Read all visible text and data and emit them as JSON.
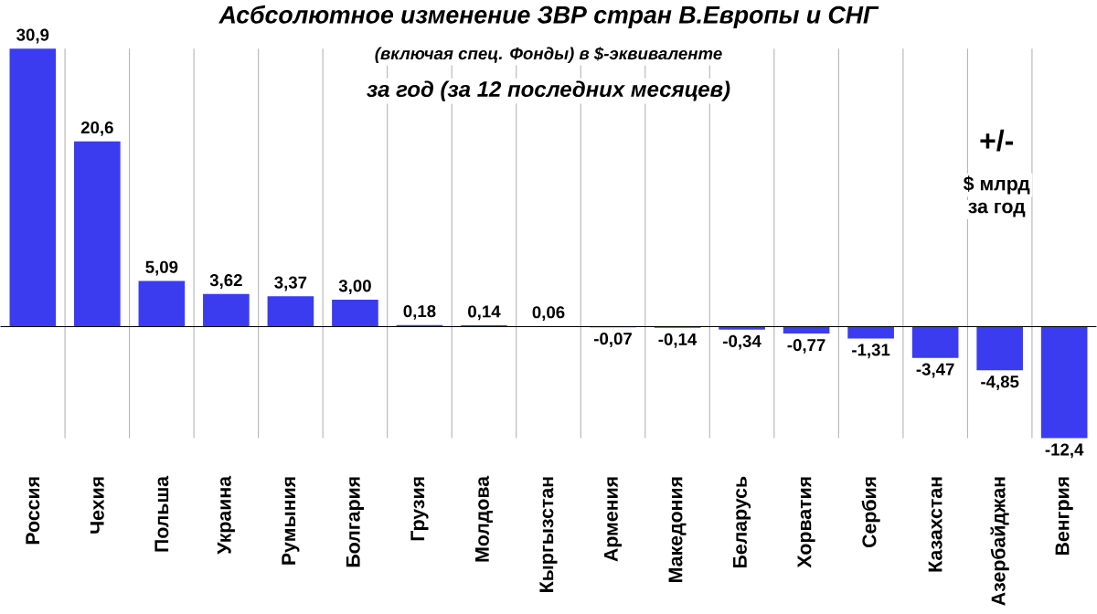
{
  "chart_data": {
    "type": "bar",
    "title": "Асбсолютное изменение ЗВР стран В.Европы  и СНГ",
    "subtitle": [
      "(включая спец. Фонды) в $-эквиваленте",
      "за год  (за 12 последних  месяцев)"
    ],
    "annotations": [
      "+/-",
      "$ млрд",
      "за год"
    ],
    "categories": [
      "Россия",
      "Чехия",
      "Польша",
      "Украина",
      "Румыния",
      "Болгария",
      "Грузия",
      "Молдова",
      "Кыргызстан",
      "Армения",
      "Македония",
      "Беларусь",
      "Хорватия",
      "Сербия",
      "Казахстан",
      "Азербайджан",
      "Венгрия"
    ],
    "values": [
      30.9,
      20.6,
      5.09,
      3.62,
      3.37,
      3.0,
      0.18,
      0.14,
      0.06,
      -0.07,
      -0.14,
      -0.34,
      -0.77,
      -1.31,
      -3.47,
      -4.85,
      -12.4
    ],
    "value_labels": [
      "30,9",
      "20,6",
      "5,09",
      "3,62",
      "3,37",
      "3,00",
      "0,18",
      "0,14",
      "0,06",
      "-0,07",
      "-0,14",
      "-0,34",
      "-0,77",
      "-1,31",
      "-3,47",
      "-4,85",
      "-12,4"
    ],
    "color": "#3b3bf0",
    "grid": "x"
  }
}
